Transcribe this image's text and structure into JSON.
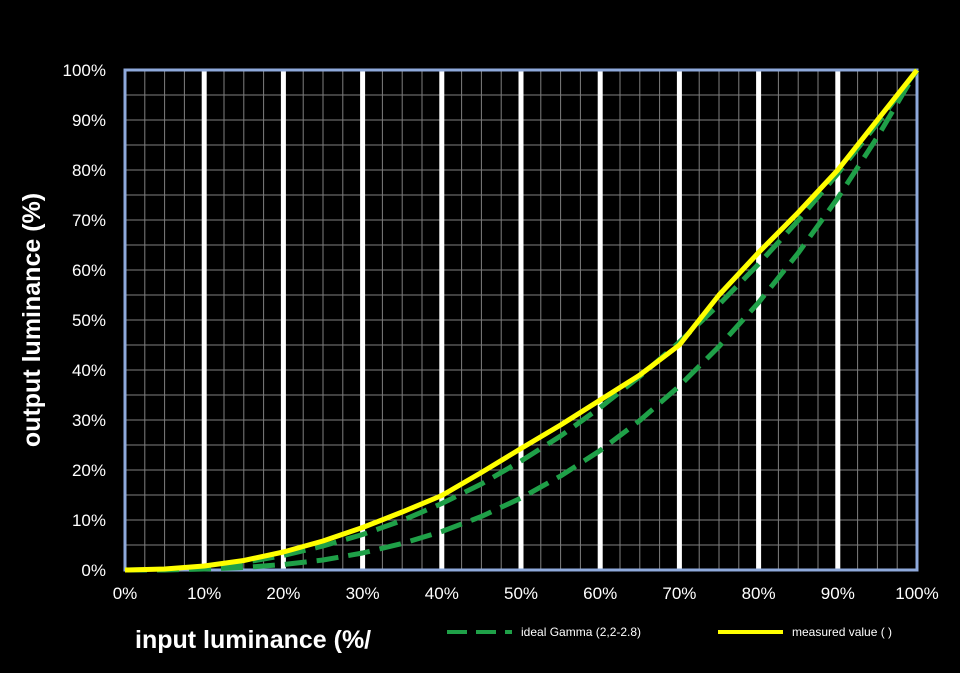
{
  "chart_data": {
    "type": "line",
    "xlabel": "input luminance (%/",
    "ylabel": "output luminance (%)",
    "xlim": [
      0,
      100
    ],
    "ylim": [
      0,
      100
    ],
    "x_ticks": [
      "0%",
      "10%",
      "20%",
      "30%",
      "40%",
      "50%",
      "60%",
      "70%",
      "80%",
      "90%",
      "100%"
    ],
    "y_ticks": [
      "0%",
      "10%",
      "20%",
      "30%",
      "40%",
      "50%",
      "60%",
      "70%",
      "80%",
      "90%",
      "100%"
    ],
    "grid": true,
    "legend_position": "bottom",
    "colors": {
      "background": "#000000",
      "plot_border": "#8ea9db",
      "grid_minor": "#7f7f7f",
      "grid_major": "#ffffff",
      "gamma_line": "#1fa048",
      "measured_line": "#ffff00"
    },
    "x": [
      0,
      5,
      10,
      15,
      20,
      25,
      30,
      35,
      40,
      45,
      50,
      55,
      60,
      65,
      70,
      75,
      80,
      85,
      90,
      95,
      100
    ],
    "series": [
      {
        "name": "ideal Gamma  (2,2-2.8)",
        "style": "dashed",
        "color": "#1fa048",
        "values": [
          0,
          0.1,
          0.6,
          1.5,
          2.9,
          4.8,
          7.1,
          9.9,
          13.3,
          17.2,
          21.8,
          26.8,
          32.5,
          38.7,
          45.6,
          53.1,
          61.2,
          69.9,
          79.3,
          89.3,
          100
        ]
      },
      {
        "name": "",
        "style": "dashed",
        "color": "#1fa048",
        "values": [
          0,
          0,
          0.2,
          0.5,
          1.1,
          2.0,
          3.4,
          5.3,
          7.7,
          10.7,
          14.4,
          18.8,
          23.9,
          29.9,
          36.8,
          44.7,
          53.5,
          63.4,
          74.4,
          86.6,
          100
        ]
      },
      {
        "name": "measured value ( )",
        "style": "solid",
        "color": "#ffff00",
        "values": [
          0,
          0.2,
          0.8,
          1.9,
          3.6,
          5.8,
          8.5,
          11.6,
          14.9,
          19.5,
          24.3,
          29.0,
          34.0,
          39.0,
          45.0,
          55.0,
          63.5,
          71.5,
          80.0,
          90.0,
          100
        ]
      }
    ]
  }
}
